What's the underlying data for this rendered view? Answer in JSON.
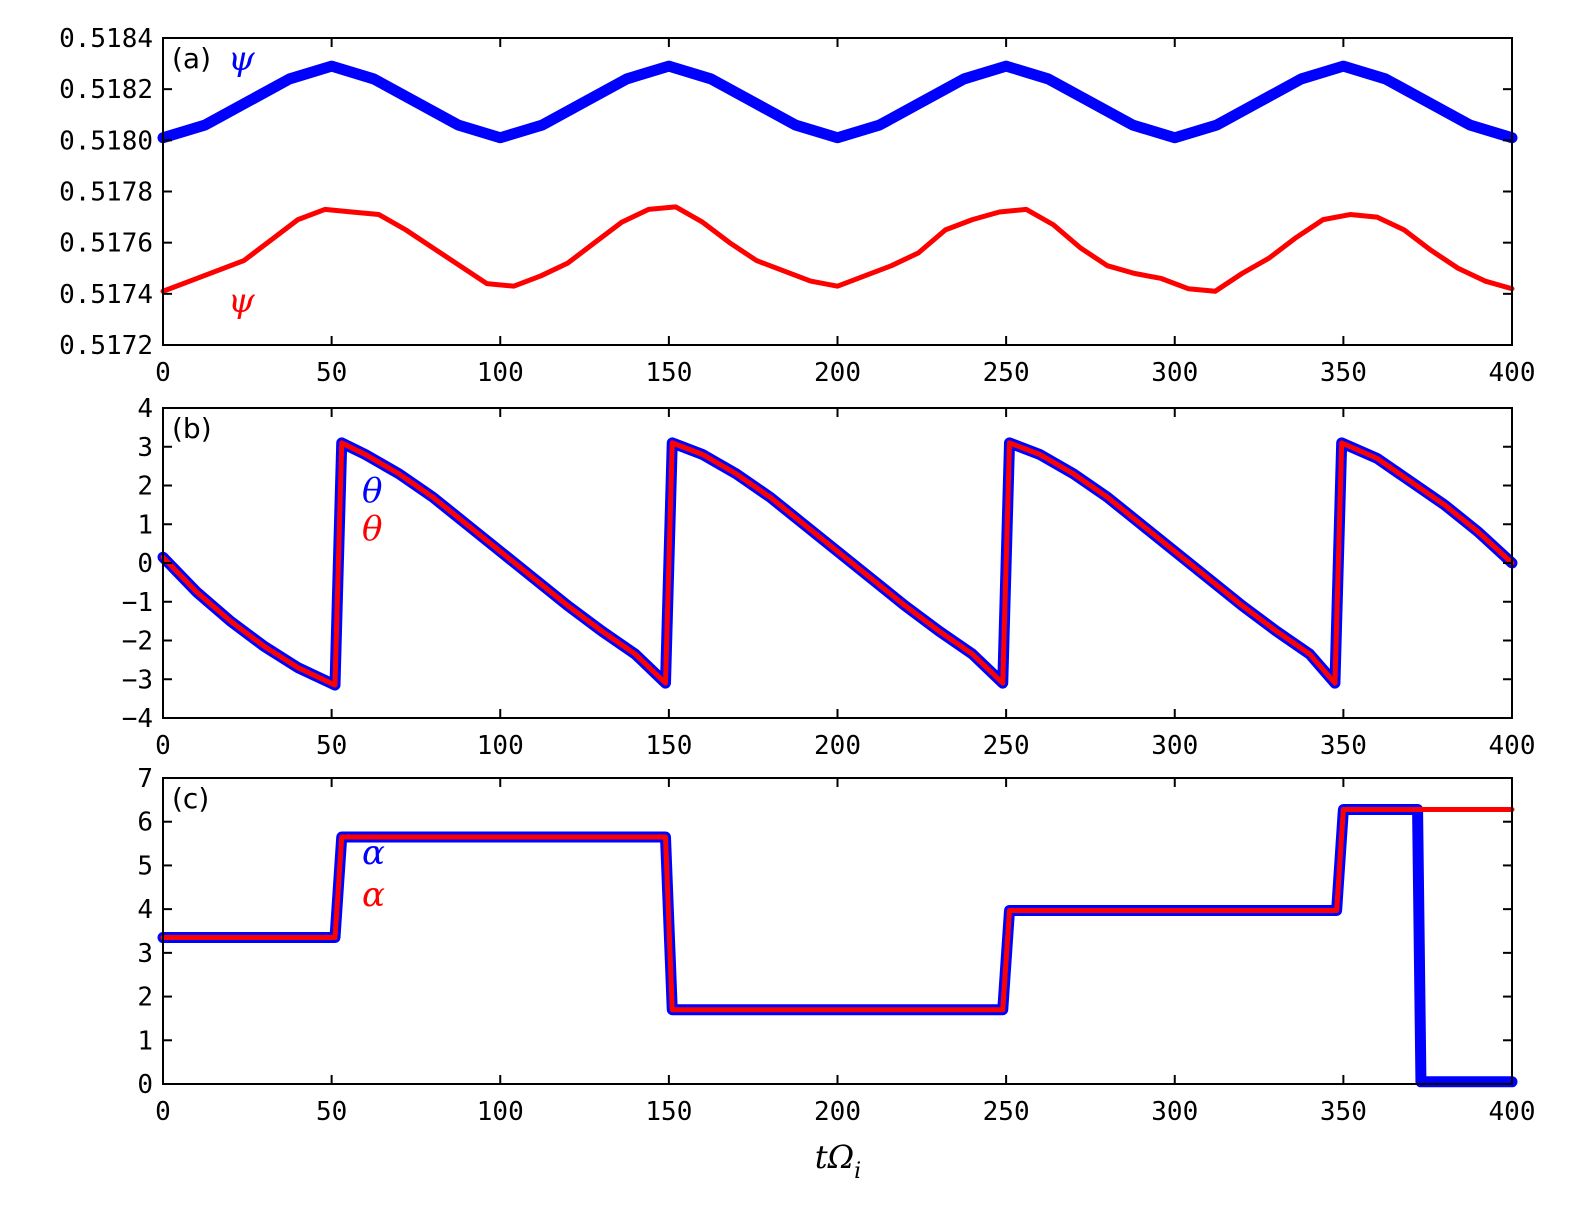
{
  "chart_data": [
    {
      "type": "line",
      "panel_label": "(a)",
      "xlim": [
        0,
        400
      ],
      "ylim": [
        0.5172,
        0.5184
      ],
      "xticks": [
        "0",
        "50",
        "100",
        "150",
        "200",
        "250",
        "300",
        "350",
        "400"
      ],
      "yticks": [
        "0.5172",
        "0.5174",
        "0.5176",
        "0.5178",
        "0.5180",
        "0.5182",
        "0.5184"
      ],
      "grid": false,
      "series": [
        {
          "name": "ψ",
          "color": "#0000ff",
          "style": "thick",
          "x": [
            0,
            12.5,
            25,
            37.5,
            50,
            62.5,
            75,
            87.5,
            100,
            112.5,
            125,
            137.5,
            150,
            162.5,
            175,
            187.5,
            200,
            212.5,
            225,
            237.5,
            250,
            262.5,
            275,
            287.5,
            300,
            312.5,
            325,
            337.5,
            350,
            362.5,
            375,
            387.5,
            400
          ],
          "values": [
            0.51801,
            0.51806,
            0.51815,
            0.51824,
            0.51829,
            0.51824,
            0.51815,
            0.51806,
            0.51801,
            0.51806,
            0.51815,
            0.51824,
            0.51829,
            0.51824,
            0.51815,
            0.51806,
            0.51801,
            0.51806,
            0.51815,
            0.51824,
            0.51829,
            0.51824,
            0.51815,
            0.51806,
            0.51801,
            0.51806,
            0.51815,
            0.51824,
            0.51829,
            0.51824,
            0.51815,
            0.51806,
            0.51801
          ]
        },
        {
          "name": "ψ",
          "color": "#ff0000",
          "style": "thin",
          "x": [
            0,
            8,
            16,
            24,
            32,
            40,
            48,
            56,
            64,
            72,
            80,
            88,
            96,
            104,
            112,
            120,
            128,
            136,
            144,
            152,
            160,
            168,
            176,
            184,
            192,
            200,
            208,
            216,
            224,
            232,
            240,
            248,
            256,
            264,
            272,
            280,
            288,
            296,
            304,
            312,
            320,
            328,
            336,
            344,
            352,
            360,
            368,
            376,
            384,
            392,
            400
          ],
          "values": [
            0.51741,
            0.51745,
            0.51749,
            0.51753,
            0.51761,
            0.51769,
            0.51773,
            0.51772,
            0.51771,
            0.51765,
            0.51758,
            0.51751,
            0.51744,
            0.51743,
            0.51747,
            0.51752,
            0.5176,
            0.51768,
            0.51773,
            0.51774,
            0.51768,
            0.5176,
            0.51753,
            0.51749,
            0.51745,
            0.51743,
            0.51747,
            0.51751,
            0.51756,
            0.51765,
            0.51769,
            0.51772,
            0.51773,
            0.51767,
            0.51758,
            0.51751,
            0.51748,
            0.51746,
            0.51742,
            0.51741,
            0.51748,
            0.51754,
            0.51762,
            0.51769,
            0.51771,
            0.5177,
            0.51765,
            0.51757,
            0.5175,
            0.51745,
            0.51742
          ]
        }
      ]
    },
    {
      "type": "line",
      "panel_label": "(b)",
      "xlim": [
        0,
        400
      ],
      "ylim": [
        -4,
        4
      ],
      "xticks": [
        "0",
        "50",
        "100",
        "150",
        "200",
        "250",
        "300",
        "350",
        "400"
      ],
      "yticks": [
        "−4",
        "−3",
        "−2",
        "−1",
        "0",
        "1",
        "2",
        "3",
        "4"
      ],
      "grid": false,
      "series": [
        {
          "name": "θ",
          "color": "#0000ff",
          "style": "thick",
          "x": [
            0,
            10,
            20,
            30,
            40,
            51,
            52,
            53,
            60,
            70,
            80,
            90,
            100,
            110,
            120,
            130,
            140,
            149,
            150,
            151,
            160,
            170,
            180,
            190,
            200,
            210,
            220,
            230,
            240,
            249,
            250,
            251,
            260,
            270,
            280,
            290,
            300,
            310,
            320,
            330,
            340,
            347.5,
            348.5,
            349.5,
            360,
            370,
            380,
            390,
            400
          ],
          "values": [
            0.15,
            -0.75,
            -1.5,
            -2.15,
            -2.7,
            -3.15,
            0,
            3.1,
            2.8,
            2.3,
            1.7,
            1.0,
            0.3,
            -0.4,
            -1.1,
            -1.75,
            -2.35,
            -3.1,
            0,
            3.1,
            2.8,
            2.3,
            1.7,
            1.0,
            0.3,
            -0.4,
            -1.1,
            -1.75,
            -2.35,
            -3.1,
            0,
            3.1,
            2.8,
            2.3,
            1.7,
            1.0,
            0.3,
            -0.4,
            -1.1,
            -1.75,
            -2.35,
            -3.1,
            0,
            3.1,
            2.7,
            2.1,
            1.5,
            0.8,
            0.0
          ]
        },
        {
          "name": "θ",
          "color": "#ff0000",
          "style": "thin",
          "x": [
            0,
            10,
            20,
            30,
            40,
            51,
            52,
            53,
            60,
            70,
            80,
            90,
            100,
            110,
            120,
            130,
            140,
            149,
            150,
            151,
            160,
            170,
            180,
            190,
            200,
            210,
            220,
            230,
            240,
            249,
            250,
            251,
            260,
            270,
            280,
            290,
            300,
            310,
            320,
            330,
            340,
            347.5,
            348.5,
            349.5,
            360,
            370,
            380,
            390,
            400
          ],
          "values": [
            0.15,
            -0.75,
            -1.5,
            -2.15,
            -2.7,
            -3.15,
            0,
            3.1,
            2.8,
            2.3,
            1.7,
            1.0,
            0.3,
            -0.4,
            -1.1,
            -1.75,
            -2.35,
            -3.1,
            0,
            3.1,
            2.8,
            2.3,
            1.7,
            1.0,
            0.3,
            -0.4,
            -1.1,
            -1.75,
            -2.35,
            -3.1,
            0,
            3.1,
            2.8,
            2.3,
            1.7,
            1.0,
            0.3,
            -0.4,
            -1.1,
            -1.75,
            -2.35,
            -3.1,
            0,
            3.1,
            2.7,
            2.1,
            1.5,
            0.8,
            0.0
          ]
        }
      ]
    },
    {
      "type": "line",
      "panel_label": "(c)",
      "xlim": [
        0,
        400
      ],
      "ylim": [
        0,
        7
      ],
      "xticks": [
        "0",
        "50",
        "100",
        "150",
        "200",
        "250",
        "300",
        "350",
        "400"
      ],
      "yticks": [
        "0",
        "1",
        "2",
        "3",
        "4",
        "5",
        "6",
        "7"
      ],
      "xlabel": "tΩi",
      "grid": false,
      "series": [
        {
          "name": "α",
          "color": "#0000ff",
          "style": "thick",
          "x": [
            0,
            51,
            53,
            149,
            151,
            249,
            251,
            348,
            350,
            372,
            373,
            400
          ],
          "values": [
            3.35,
            3.35,
            5.65,
            5.65,
            1.7,
            1.7,
            3.97,
            3.97,
            6.28,
            6.28,
            0.05,
            0.05
          ]
        },
        {
          "name": "α",
          "color": "#ff0000",
          "style": "thin",
          "x": [
            0,
            51,
            53,
            149,
            151,
            249,
            251,
            348,
            350,
            400
          ],
          "values": [
            3.35,
            3.35,
            5.65,
            5.65,
            1.7,
            1.7,
            3.97,
            3.97,
            6.28,
            6.28
          ]
        }
      ]
    }
  ]
}
